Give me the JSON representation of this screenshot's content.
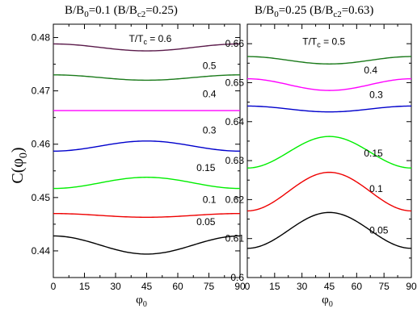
{
  "ylabel_main": "C(φ",
  "ylabel_sub": "0",
  "ylabel_close": ")",
  "chart_data": [
    {
      "type": "line",
      "title": {
        "p1": "B/B",
        "s1": "0",
        "p2": "=0.1  (B/B",
        "s2": "c2",
        "p3": "=0.25)"
      },
      "xlabel": {
        "main": "φ",
        "sub": "0"
      },
      "xlim": [
        0,
        90
      ],
      "ylim": [
        0.435,
        0.4825
      ],
      "xticks": [
        0,
        15,
        30,
        45,
        60,
        75,
        90
      ],
      "yticks": [
        {
          "v": 0.44,
          "label": "0.44"
        },
        {
          "v": 0.45,
          "label": "0.45"
        },
        {
          "v": 0.46,
          "label": "0.46"
        },
        {
          "v": 0.47,
          "label": "0.47"
        },
        {
          "v": 0.48,
          "label": "0.48"
        }
      ],
      "legend_header": {
        "p1": "T/T",
        "sub": "c",
        "p2": " = 0.6"
      },
      "series": [
        {
          "label": "0.6",
          "color": "#5a1a4a",
          "edge": 0.4788,
          "mid": 0.4775,
          "lx": 52,
          "ly": 0.4792,
          "header": true
        },
        {
          "label": "0.5",
          "color": "#1a7a1a",
          "edge": 0.473,
          "mid": 0.472,
          "lx": 72,
          "ly": 0.4741
        },
        {
          "label": "0.4",
          "color": "#ff00ff",
          "edge": 0.4663,
          "mid": 0.4663,
          "lx": 72,
          "ly": 0.4688
        },
        {
          "label": "0.3",
          "color": "#0000cc",
          "edge": 0.4587,
          "mid": 0.4606,
          "lx": 72,
          "ly": 0.462
        },
        {
          "label": "0.15",
          "color": "#00ee00",
          "edge": 0.4517,
          "mid": 0.4538,
          "lx": 69,
          "ly": 0.455
        },
        {
          "label": "0.1",
          "color": "#ee0000",
          "edge": 0.447,
          "mid": 0.4463,
          "lx": 72,
          "ly": 0.449
        },
        {
          "label": "0.05",
          "color": "#000000",
          "edge": 0.4428,
          "mid": 0.4394,
          "lx": 69,
          "ly": 0.4448
        }
      ]
    },
    {
      "type": "line",
      "title": {
        "p1": "B/B",
        "s1": "0",
        "p2": "=0.25  (B/B",
        "s2": "c2",
        "p3": "=0.63)"
      },
      "xlabel": {
        "main": "φ",
        "sub": "0"
      },
      "xlim": [
        0,
        90
      ],
      "ylim": [
        0.6,
        0.665
      ],
      "xticks": [
        0,
        15,
        30,
        45,
        60,
        75,
        90
      ],
      "yticks": [
        {
          "v": 0.6,
          "label": "0.6"
        },
        {
          "v": 0.61,
          "label": "0.61"
        },
        {
          "v": 0.62,
          "label": "0.62"
        },
        {
          "v": 0.63,
          "label": "0.63"
        },
        {
          "v": 0.64,
          "label": "0.64"
        },
        {
          "v": 0.65,
          "label": "0.65"
        },
        {
          "v": 0.66,
          "label": "0.66"
        }
      ],
      "legend_header": {
        "p1": "T/T",
        "sub": "c",
        "p2": " = 0.5"
      },
      "series": [
        {
          "label": "0.5",
          "color": "#1a7a1a",
          "edge": 0.6567,
          "mid": 0.6548,
          "lx": 48,
          "ly": 0.6597,
          "header": true
        },
        {
          "label": "0.4",
          "color": "#ff00ff",
          "edge": 0.651,
          "mid": 0.648,
          "lx": 64,
          "ly": 0.6524
        },
        {
          "label": "0.3",
          "color": "#0000cc",
          "edge": 0.644,
          "mid": 0.6425,
          "lx": 67,
          "ly": 0.6461
        },
        {
          "label": "0.15",
          "color": "#00ee00",
          "edge": 0.6281,
          "mid": 0.6362,
          "lx": 64,
          "ly": 0.631
        },
        {
          "label": "0.1",
          "color": "#ee0000",
          "edge": 0.6171,
          "mid": 0.627,
          "lx": 67,
          "ly": 0.6219
        },
        {
          "label": "0.05",
          "color": "#000000",
          "edge": 0.6075,
          "mid": 0.6167,
          "lx": 67,
          "ly": 0.6113
        }
      ]
    }
  ]
}
